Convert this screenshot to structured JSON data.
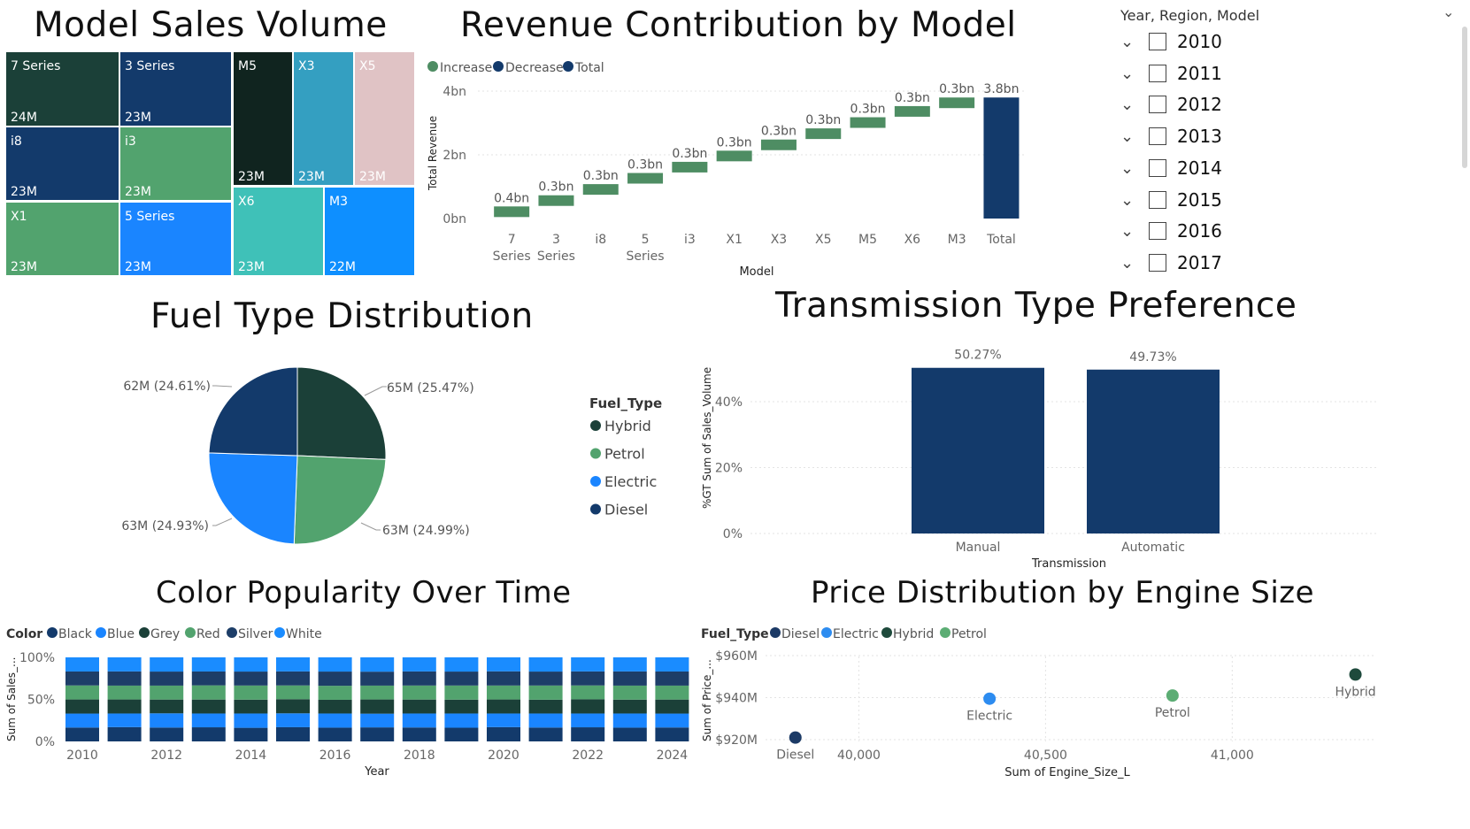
{
  "titles": {
    "treemap": "Model Sales Volume",
    "waterfall": "Revenue Contribution by Model",
    "pie": "Fuel Type Distribution",
    "transmission": "Transmission Type Preference",
    "color": "Color Popularity Over Time",
    "scatter": "Price Distribution by Engine Size"
  },
  "colors": {
    "dark_teal": "#1b4038",
    "navy": "#133a6b",
    "green": "#52a36e",
    "blue": "#1a85ff",
    "teal_light": "#3fc1b8",
    "cyan": "#349fc1",
    "pink": "#e0c3c5",
    "black_green": "#10241f",
    "bright_blue": "#0e8fff",
    "waterfall_green": "#4e8d63",
    "waterfall_total": "#133a6b",
    "scatter_diesel": "#1c3a66",
    "scatter_electric": "#2d8cf0",
    "scatter_hybrid": "#1e4a3c",
    "scatter_petrol": "#5cad74"
  },
  "slicer": {
    "header": "Year, Region, Model",
    "items": [
      "2010",
      "2011",
      "2012",
      "2013",
      "2014",
      "2015",
      "2016",
      "2017"
    ]
  },
  "chart_data": [
    {
      "id": "treemap",
      "type": "treemap",
      "title": "Model Sales Volume",
      "items": [
        {
          "name": "7 Series",
          "value": "24M",
          "color": "#1b4038"
        },
        {
          "name": "3 Series",
          "value": "23M",
          "color": "#133a6b"
        },
        {
          "name": "M5",
          "value": "23M",
          "color": "#10241f"
        },
        {
          "name": "X3",
          "value": "23M",
          "color": "#349fc1"
        },
        {
          "name": "X5",
          "value": "23M",
          "color": "#e0c3c5"
        },
        {
          "name": "i8",
          "value": "23M",
          "color": "#133a6b"
        },
        {
          "name": "i3",
          "value": "23M",
          "color": "#52a36e"
        },
        {
          "name": "X1",
          "value": "23M",
          "color": "#52a36e"
        },
        {
          "name": "5 Series",
          "value": "23M",
          "color": "#1a85ff"
        },
        {
          "name": "X6",
          "value": "23M",
          "color": "#3fc1b8"
        },
        {
          "name": "M3",
          "value": "22M",
          "color": "#0e8fff"
        }
      ]
    },
    {
      "id": "waterfall",
      "type": "bar",
      "subtype": "waterfall",
      "title": "Revenue Contribution by Model",
      "legend": [
        "Increase",
        "Decrease",
        "Total"
      ],
      "legend_colors": [
        "#4e8d63",
        "#133a6b",
        "#133a6b"
      ],
      "xlabel": "Model",
      "ylabel": "Total Revenue",
      "yticks": [
        "0bn",
        "2bn",
        "4bn"
      ],
      "ylim": [
        0,
        4
      ],
      "categories": [
        "7 Series",
        "3 Series",
        "i8",
        "5 Series",
        "i3",
        "X1",
        "X3",
        "X5",
        "M5",
        "X6",
        "M3",
        "Total"
      ],
      "labels": [
        "0.4bn",
        "0.3bn",
        "0.3bn",
        "0.3bn",
        "0.3bn",
        "0.3bn",
        "0.3bn",
        "0.3bn",
        "0.3bn",
        "0.3bn",
        "0.3bn",
        "3.8bn"
      ],
      "starts": [
        0,
        0.38,
        0.73,
        1.08,
        1.43,
        1.78,
        2.13,
        2.48,
        2.83,
        3.18,
        3.53,
        0
      ],
      "ends": [
        0.38,
        0.73,
        1.08,
        1.43,
        1.78,
        2.13,
        2.48,
        2.83,
        3.18,
        3.53,
        3.8,
        3.8
      ]
    },
    {
      "id": "pie",
      "type": "pie",
      "title": "Fuel Type Distribution",
      "legend_title": "Fuel_Type",
      "slices": [
        {
          "name": "Hybrid",
          "value": 65,
          "label": "65M (25.47%)",
          "color": "#1b4038"
        },
        {
          "name": "Petrol",
          "value": 63,
          "label": "63M (24.99%)",
          "color": "#52a36e"
        },
        {
          "name": "Electric",
          "value": 63,
          "label": "63M (24.93%)",
          "color": "#1a85ff"
        },
        {
          "name": "Diesel",
          "value": 62,
          "label": "62M (24.61%)",
          "color": "#133a6b"
        }
      ]
    },
    {
      "id": "transmission",
      "type": "bar",
      "title": "Transmission Type Preference",
      "xlabel": "Transmission",
      "ylabel": "%GT Sum of Sales_Volume",
      "yticks": [
        "0%",
        "20%",
        "40%"
      ],
      "ylim": [
        0,
        50.27
      ],
      "categories": [
        "Manual",
        "Automatic"
      ],
      "values": [
        50.27,
        49.73
      ],
      "labels": [
        "50.27%",
        "49.73%"
      ],
      "color": "#133a6b"
    },
    {
      "id": "color",
      "type": "bar",
      "subtype": "100% stacked column",
      "title": "Color Popularity Over Time",
      "legend_title": "Color",
      "xlabel": "Year",
      "ylabel": "Sum of Sales_...",
      "yticks": [
        "0%",
        "50%",
        "100%"
      ],
      "xticks": [
        "2010",
        "2012",
        "2014",
        "2016",
        "2018",
        "2020",
        "2022",
        "2024"
      ],
      "categories": [
        "2010",
        "2011",
        "2012",
        "2013",
        "2014",
        "2015",
        "2016",
        "2017",
        "2018",
        "2019",
        "2020",
        "2021",
        "2022",
        "2023",
        "2024"
      ],
      "series": [
        {
          "name": "Black",
          "color": "#133a6b",
          "values": [
            16.5,
            17,
            16.5,
            16.8,
            16.2,
            16.9,
            16.4,
            16.7,
            16.6,
            16.3,
            17,
            16.5,
            16.8,
            16.4,
            16.6
          ]
        },
        {
          "name": "Blue",
          "color": "#1a85ff",
          "values": [
            16.6,
            16.2,
            16.9,
            16.4,
            17,
            16.5,
            16.8,
            16.3,
            16.6,
            16.9,
            16.2,
            16.7,
            16.4,
            16.8,
            16.5
          ]
        },
        {
          "name": "Grey",
          "color": "#1b4038",
          "values": [
            16.8,
            16.7,
            16.4,
            16.6,
            16.5,
            16.8,
            16.3,
            16.9,
            16.6,
            16.5,
            16.7,
            16.4,
            16.9,
            16.5,
            16.7
          ]
        },
        {
          "name": "Red",
          "color": "#52a36e",
          "values": [
            16.7,
            16.5,
            16.6,
            16.9,
            16.8,
            16.4,
            16.7,
            16.5,
            16.7,
            16.8,
            16.6,
            16.9,
            16.5,
            16.7,
            16.6
          ]
        },
        {
          "name": "Silver",
          "color": "#1d3e68",
          "values": [
            16.6,
            16.9,
            16.7,
            16.5,
            16.6,
            16.7,
            16.9,
            16.6,
            16.8,
            16.6,
            16.9,
            16.6,
            16.7,
            16.9,
            16.8
          ]
        },
        {
          "name": "White",
          "color": "#1a8cff",
          "values": [
            16.8,
            16.7,
            16.9,
            16.8,
            16.9,
            16.7,
            16.9,
            17,
            16.7,
            16.9,
            16.6,
            16.9,
            16.7,
            16.7,
            16.8
          ]
        }
      ]
    },
    {
      "id": "scatter",
      "type": "scatter",
      "title": "Price Distribution by Engine Size",
      "legend_title": "Fuel_Type",
      "xlabel": "Sum of Engine_Size_L",
      "ylabel": "Sum of Price_...",
      "xticks": [
        "40,000",
        "40,500",
        "41,000"
      ],
      "yticks": [
        "$920M",
        "$940M",
        "$960M"
      ],
      "xlim": [
        39750,
        41350
      ],
      "ylim": [
        920,
        960
      ],
      "points": [
        {
          "name": "Diesel",
          "x": 39830,
          "y": 921,
          "color": "#1c3a66"
        },
        {
          "name": "Electric",
          "x": 40350,
          "y": 939.5,
          "color": "#2d8cf0"
        },
        {
          "name": "Hybrid",
          "x": 41330,
          "y": 951,
          "color": "#1e4a3c"
        },
        {
          "name": "Petrol",
          "x": 40840,
          "y": 941,
          "color": "#5cad74"
        }
      ]
    }
  ]
}
